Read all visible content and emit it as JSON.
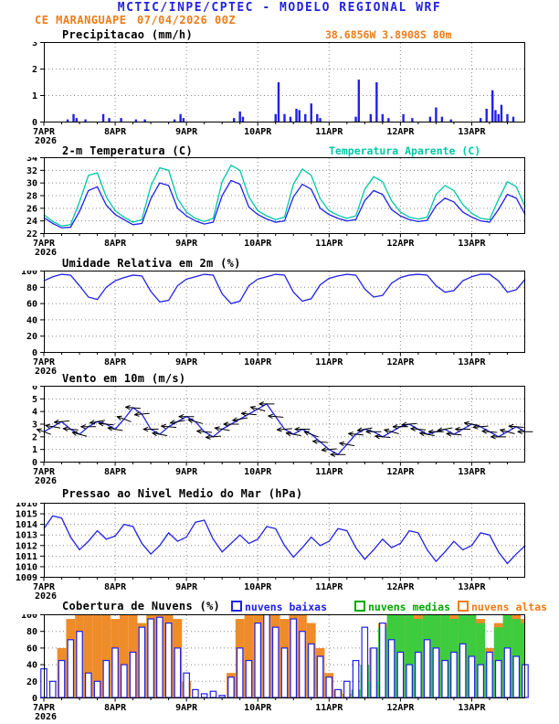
{
  "header": {
    "title": "MCTIC/INPE/CPTEC - MODELO REGIONAL WRF",
    "station": "CE MARANGUAPE",
    "run": "07/04/2026 00Z",
    "location": "38.6856W 3.8908S 80m",
    "colors": {
      "title": "#2323dd",
      "highlight": "#ee7d18"
    }
  },
  "x_axis": {
    "t_max": 162,
    "minor_step": 6,
    "day_ticks": [
      {
        "t": 0,
        "label": "7APR",
        "sub": "2026"
      },
      {
        "t": 24,
        "label": "8APR"
      },
      {
        "t": 48,
        "label": "9APR"
      },
      {
        "t": 72,
        "label": "10APR"
      },
      {
        "t": 96,
        "label": "11APR"
      },
      {
        "t": 120,
        "label": "12APR"
      },
      {
        "t": 144,
        "label": "13APR"
      }
    ]
  },
  "chart_data": [
    {
      "type": "bar",
      "title": "Precipitacao (mm/h)",
      "ymin": 0,
      "ymax": 3,
      "yticks": [
        0,
        1,
        2,
        3
      ],
      "series": [
        {
          "name": "precipitacao",
          "type": "sparse_bars",
          "color": "#2121e8",
          "points": [
            [
              8,
              0.1
            ],
            [
              10,
              0.3
            ],
            [
              11,
              0.15
            ],
            [
              14,
              0.1
            ],
            [
              20,
              0.3
            ],
            [
              22,
              0.15
            ],
            [
              26,
              0.15
            ],
            [
              31,
              0.1
            ],
            [
              34,
              0.1
            ],
            [
              44,
              0.1
            ],
            [
              46,
              0.3
            ],
            [
              47,
              0.15
            ],
            [
              64,
              0.15
            ],
            [
              66,
              0.4
            ],
            [
              67,
              0.2
            ],
            [
              78,
              0.3
            ],
            [
              79,
              1.5
            ],
            [
              81,
              0.3
            ],
            [
              83,
              0.2
            ],
            [
              85,
              0.5
            ],
            [
              86,
              0.45
            ],
            [
              88,
              0.3
            ],
            [
              90,
              0.7
            ],
            [
              92,
              0.3
            ],
            [
              93,
              0.15
            ],
            [
              105,
              0.2
            ],
            [
              106,
              1.6
            ],
            [
              110,
              0.3
            ],
            [
              112,
              1.5
            ],
            [
              114,
              0.3
            ],
            [
              116,
              0.15
            ],
            [
              121,
              0.3
            ],
            [
              124,
              0.15
            ],
            [
              130,
              0.2
            ],
            [
              132,
              0.55
            ],
            [
              134,
              0.2
            ],
            [
              137,
              0.1
            ],
            [
              147,
              0.15
            ],
            [
              149,
              0.5
            ],
            [
              151,
              1.2
            ],
            [
              152,
              0.45
            ],
            [
              153,
              0.3
            ],
            [
              154,
              0.65
            ],
            [
              156,
              0.3
            ],
            [
              158,
              0.2
            ]
          ]
        }
      ]
    },
    {
      "type": "line",
      "title": "2-m Temperatura (C)",
      "right_label": {
        "text": "Temperatura Aparente (C)",
        "color": "#00c8a8"
      },
      "ymin": 22,
      "ymax": 34,
      "yticks": [
        22,
        24,
        26,
        28,
        30,
        32,
        34
      ],
      "series": [
        {
          "name": "temperatura_aparente",
          "type": "line",
          "color": "#00c8a8",
          "values": [
            25.0,
            23.9,
            23.2,
            23.4,
            27.0,
            31.2,
            31.6,
            27.8,
            25.6,
            24.6,
            23.8,
            24.2,
            29.5,
            32.4,
            32.0,
            27.5,
            25.4,
            24.4,
            23.9,
            24.4,
            30.2,
            32.8,
            32.0,
            27.8,
            25.6,
            24.8,
            24.2,
            24.6,
            29.8,
            32.2,
            31.2,
            27.5,
            25.6,
            24.9,
            24.4,
            24.8,
            29.0,
            31.0,
            30.2,
            27.2,
            25.4,
            24.6,
            24.3,
            24.6,
            28.2,
            29.6,
            28.8,
            26.6,
            25.2,
            24.4,
            24.2,
            27.4,
            30.2,
            29.4,
            26.2
          ]
        },
        {
          "name": "temperatura_2m",
          "type": "line",
          "color": "#2121e8",
          "values": [
            24.5,
            23.6,
            22.9,
            23.0,
            25.5,
            28.8,
            29.4,
            26.5,
            25.0,
            24.2,
            23.4,
            23.6,
            27.5,
            30.0,
            29.6,
            26.0,
            24.8,
            24.0,
            23.5,
            23.8,
            28.0,
            30.4,
            29.8,
            26.2,
            25.0,
            24.3,
            23.8,
            24.0,
            27.8,
            29.8,
            29.0,
            26.0,
            25.0,
            24.4,
            24.0,
            24.2,
            27.2,
            28.8,
            28.2,
            25.8,
            24.8,
            24.2,
            23.9,
            24.1,
            26.4,
            27.6,
            27.0,
            25.4,
            24.6,
            24.0,
            23.8,
            25.8,
            28.2,
            27.6,
            25.0
          ]
        }
      ]
    },
    {
      "type": "line",
      "title": "Umidade Relativa em 2m (%)",
      "ymin": 0,
      "ymax": 100,
      "yticks": [
        0,
        20,
        40,
        60,
        80,
        100
      ],
      "series": [
        {
          "name": "umidade_relativa",
          "type": "line",
          "color": "#2121e8",
          "values": [
            88,
            93,
            96,
            95,
            82,
            68,
            65,
            80,
            88,
            92,
            95,
            94,
            75,
            62,
            64,
            82,
            90,
            93,
            96,
            95,
            72,
            60,
            63,
            82,
            90,
            93,
            96,
            95,
            74,
            63,
            66,
            83,
            91,
            94,
            96,
            95,
            78,
            68,
            70,
            85,
            92,
            95,
            96,
            95,
            82,
            74,
            76,
            88,
            93,
            96,
            96,
            88,
            74,
            77,
            90
          ]
        }
      ]
    },
    {
      "type": "line",
      "title": "Vento em 10m (m/s)",
      "ymin": 0,
      "ymax": 6,
      "yticks": [
        0,
        1,
        2,
        3,
        4,
        5,
        6
      ],
      "series": [
        {
          "name": "velocidade_vento",
          "type": "line",
          "color": "#2121e8",
          "values": [
            2.4,
            2.8,
            3.2,
            2.6,
            2.2,
            2.8,
            3.2,
            3.0,
            2.6,
            3.4,
            4.3,
            3.8,
            2.6,
            2.2,
            2.8,
            3.2,
            3.6,
            3.2,
            2.4,
            2.0,
            2.6,
            3.0,
            3.4,
            3.8,
            4.2,
            4.6,
            3.6,
            2.6,
            2.2,
            2.6,
            2.2,
            1.6,
            1.0,
            0.6,
            1.4,
            2.2,
            2.6,
            2.4,
            2.0,
            2.4,
            2.8,
            3.0,
            2.6,
            2.2,
            2.4,
            2.6,
            2.2,
            2.6,
            3.0,
            2.8,
            2.4,
            2.0,
            2.4,
            2.8,
            2.4
          ]
        },
        {
          "name": "direcao_vento",
          "type": "barbs",
          "color": "#000000",
          "angles": [
            200,
            190,
            175,
            185,
            195,
            180,
            170,
            185,
            190,
            200,
            185,
            175,
            180,
            190,
            185,
            170,
            180,
            195,
            185,
            175,
            190,
            180,
            170,
            185,
            195,
            180,
            185,
            175,
            190,
            180,
            200,
            185,
            175,
            180,
            190,
            185,
            170,
            180,
            185,
            195,
            180,
            175,
            185,
            190,
            180,
            170,
            185,
            180,
            190,
            175,
            185,
            180,
            195,
            185,
            180
          ]
        }
      ]
    },
    {
      "type": "line",
      "title": "Pressao ao Nivel Medio do Mar (hPa)",
      "ymin": 1009,
      "ymax": 1016,
      "yticks": [
        1009,
        1010,
        1011,
        1012,
        1013,
        1014,
        1015,
        1016
      ],
      "series": [
        {
          "name": "pressao_nmm",
          "type": "line",
          "color": "#2121e8",
          "values": [
            1013.6,
            1014.8,
            1014.6,
            1012.8,
            1011.6,
            1012.4,
            1013.4,
            1012.6,
            1012.9,
            1014.0,
            1013.8,
            1012.2,
            1011.2,
            1012.0,
            1013.2,
            1012.4,
            1012.8,
            1014.2,
            1014.4,
            1012.6,
            1011.4,
            1012.2,
            1013.0,
            1012.2,
            1012.6,
            1013.8,
            1013.6,
            1012.0,
            1010.9,
            1011.8,
            1012.8,
            1012.0,
            1012.4,
            1013.6,
            1013.4,
            1011.8,
            1010.7,
            1011.6,
            1012.6,
            1011.8,
            1012.2,
            1013.4,
            1013.2,
            1011.6,
            1010.5,
            1011.4,
            1012.4,
            1011.6,
            1012.0,
            1013.2,
            1013.0,
            1011.4,
            1010.3,
            1011.2,
            1012.0
          ]
        }
      ]
    },
    {
      "type": "bar",
      "title": "Cobertura de Nuvens (%)",
      "legend": [
        {
          "label": "nuvens baixas",
          "color": "#2121e8"
        },
        {
          "label": "nuvens medias",
          "color": "#00a800"
        },
        {
          "label": "nuvens altas",
          "color": "#ee7d18"
        }
      ],
      "ymin": 0,
      "ymax": 100,
      "yticks": [
        0,
        20,
        40,
        60,
        80,
        100
      ],
      "series": [
        {
          "name": "nuvens_altas",
          "type": "fill_bars",
          "color": "#ef8c2a",
          "values": [
            0,
            0,
            60,
            95,
            100,
            100,
            100,
            100,
            95,
            100,
            100,
            90,
            100,
            100,
            100,
            95,
            20,
            0,
            0,
            0,
            0,
            30,
            95,
            100,
            100,
            100,
            100,
            95,
            100,
            100,
            90,
            60,
            30,
            10,
            5,
            10,
            30,
            60,
            90,
            100,
            100,
            95,
            100,
            100,
            100,
            95,
            100,
            100,
            100,
            95,
            60,
            90,
            100,
            100,
            95
          ]
        },
        {
          "name": "nuvens_medias",
          "type": "fill_bars",
          "color": "#3ecc3e",
          "values": [
            0,
            0,
            0,
            0,
            0,
            0,
            0,
            0,
            0,
            0,
            0,
            0,
            0,
            0,
            0,
            0,
            0,
            0,
            0,
            0,
            0,
            0,
            0,
            0,
            0,
            0,
            0,
            0,
            0,
            0,
            0,
            0,
            0,
            0,
            0,
            10,
            40,
            20,
            85,
            100,
            100,
            100,
            95,
            100,
            100,
            100,
            95,
            100,
            100,
            90,
            45,
            85,
            100,
            95,
            90
          ]
        },
        {
          "name": "nuvens_baixas",
          "type": "outline_bars",
          "color": "#2121e8",
          "values": [
            35,
            20,
            45,
            70,
            80,
            30,
            20,
            45,
            60,
            40,
            55,
            85,
            95,
            97,
            90,
            60,
            30,
            10,
            5,
            8,
            3,
            25,
            60,
            45,
            90,
            100,
            85,
            60,
            95,
            80,
            65,
            50,
            25,
            10,
            20,
            45,
            85,
            60,
            90,
            70,
            55,
            40,
            55,
            70,
            60,
            45,
            55,
            65,
            50,
            40,
            55,
            45,
            60,
            50,
            40
          ]
        }
      ]
    }
  ]
}
